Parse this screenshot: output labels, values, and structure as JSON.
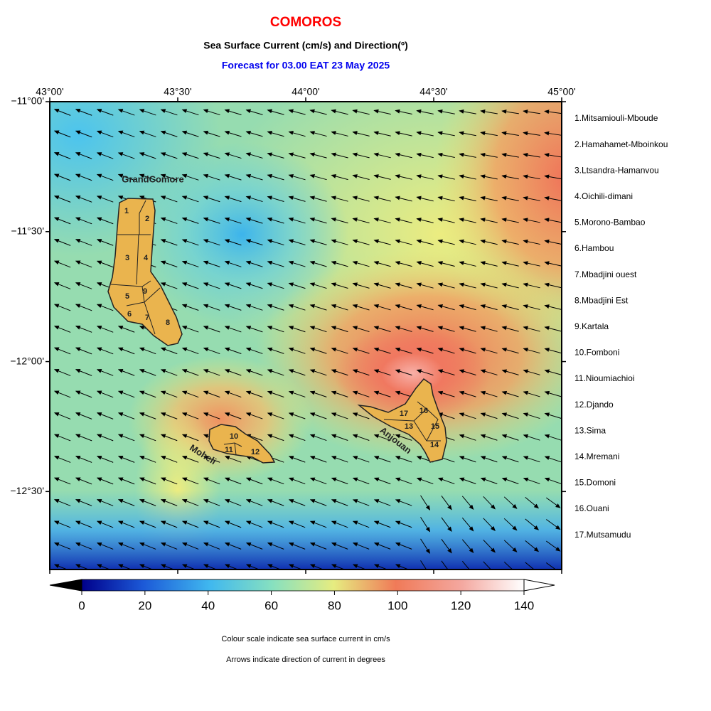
{
  "header": {
    "title": "COMOROS",
    "subtitle": "Sea Surface Current (cm/s) and Direction(º)",
    "forecast": "Forecast for  03.00 EAT 23 May 2025"
  },
  "map": {
    "lonlim": [
      43,
      45
    ],
    "latlim": [
      -11,
      -12.8
    ],
    "lon_ticks": [
      {
        "value": 43,
        "label": "43°00'"
      },
      {
        "value": 43.5,
        "label": "43°30'"
      },
      {
        "value": 44,
        "label": "44°00'"
      },
      {
        "value": 44.5,
        "label": "44°30'"
      },
      {
        "value": 45,
        "label": "45°00'"
      }
    ],
    "lat_ticks": [
      {
        "value": -11,
        "label": "−11°00'"
      },
      {
        "value": -11.5,
        "label": "−11°30'"
      },
      {
        "value": -12,
        "label": "−12°00'"
      },
      {
        "value": -12.5,
        "label": "−12°30'"
      }
    ],
    "islands": [
      "GrandComore",
      "Moheli",
      "Anjouan"
    ],
    "region_numbers": [
      "1",
      "2",
      "3",
      "4",
      "5",
      "6",
      "7",
      "8",
      "9",
      "10",
      "11",
      "12",
      "13",
      "14",
      "15",
      "16",
      "17"
    ]
  },
  "legend": [
    "1.Mitsamiouli-Mboude",
    "2.Hamahamet-Mboinkou",
    "3.Ltsandra-Hamanvou",
    "4.Oichili-dimani",
    "5.Morono-Bambao",
    "6.Hambou",
    "7.Mbadjini ouest",
    "8.Mbadjini Est",
    "9.Kartala",
    "10.Fomboni",
    "11.Nioumiachioi",
    "12.Djando",
    "13.Sima",
    "14.Mremani",
    "15.Domoni",
    "16.Ouani",
    "17.Mutsamudu"
  ],
  "colorbar": {
    "lim": [
      0,
      140
    ],
    "ticks": [
      0,
      20,
      40,
      60,
      80,
      100,
      120,
      140
    ]
  },
  "notes": [
    "Colour scale indicate sea surface current in cm/s",
    "Arrows indicate direction of current in degrees"
  ]
}
